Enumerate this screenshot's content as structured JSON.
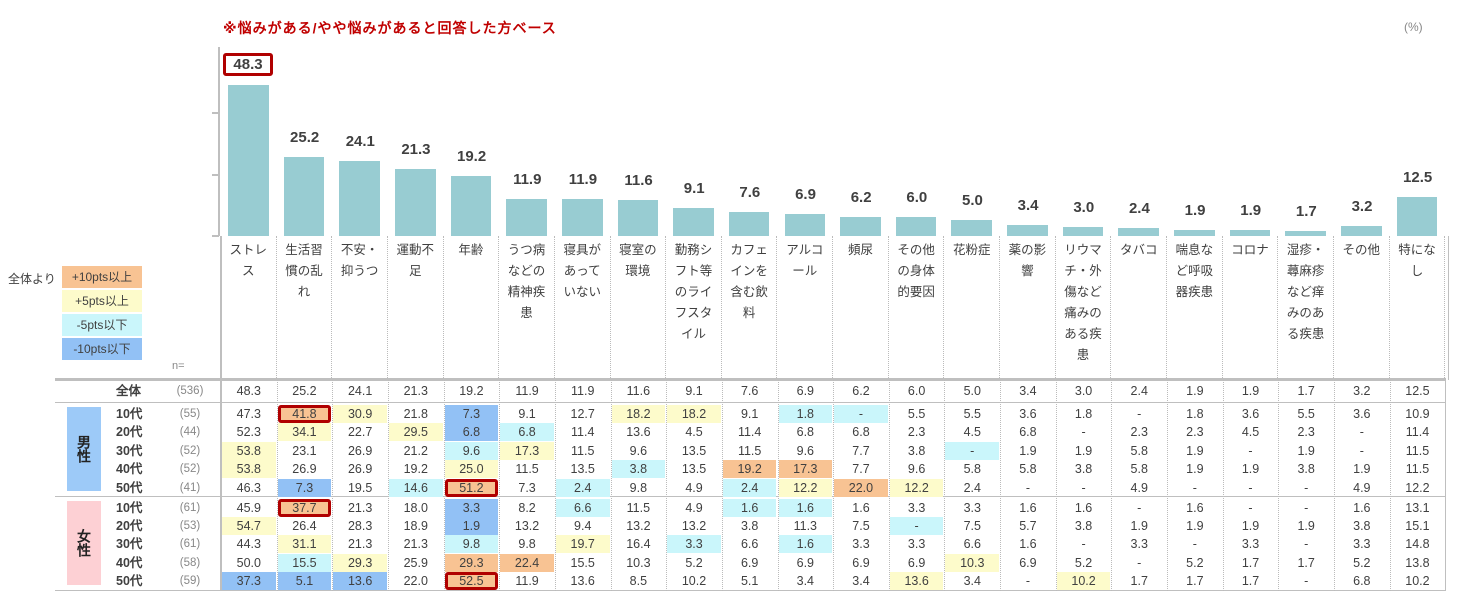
{
  "note": "※悩みがある/やや悩みがあると回答した方ベース",
  "unit": "(%)",
  "legend": {
    "title": "全体より",
    "items": [
      {
        "label": "+10pts以上",
        "cls": "o"
      },
      {
        "label": "+5pts以上",
        "cls": "y"
      },
      {
        "label": "-5pts以下",
        "cls": "c"
      },
      {
        "label": "-10pts以下",
        "cls": "b"
      }
    ]
  },
  "n_label": "n=",
  "colors": {
    "bar": "#98ccd2",
    "accent": "#c00000",
    "orange": "#f8c393",
    "yellow": "#fdfbcb",
    "cyan": "#caf6fb",
    "blue": "#92c1f5"
  },
  "chart_data": {
    "type": "bar",
    "title": "※悩みがある/やや悩みがあると回答した方ベース",
    "ylabel": "(%)",
    "ylim": [
      0,
      60
    ],
    "categories": [
      "ストレス",
      "生活習慣の乱れ",
      "不安・抑うつ",
      "運動不足",
      "年齢",
      "うつ病などの精神疾患",
      "寝具があっていない",
      "寝室の環境",
      "勤務シフト等のライフスタイル",
      "カフェインを含む飲料",
      "アルコール",
      "頻尿",
      "その他の身体的要因",
      "花粉症",
      "薬の影響",
      "リウマチ・外傷など痛みのある疾患",
      "タバコ",
      "喘息など呼吸器疾患",
      "コロナ",
      "湿疹・蕁麻疹など痒みのある疾患",
      "その他",
      "特になし"
    ],
    "values": [
      48.3,
      25.2,
      24.1,
      21.3,
      19.2,
      11.9,
      11.9,
      11.6,
      9.1,
      7.6,
      6.9,
      6.2,
      6.0,
      5.0,
      3.4,
      3.0,
      2.4,
      1.9,
      1.9,
      1.7,
      3.2,
      12.5
    ],
    "labels": [
      "48.3",
      "25.2",
      "24.1",
      "21.3",
      "19.2",
      "11.9",
      "11.9",
      "11.6",
      "9.1",
      "7.6",
      "6.9",
      "6.2",
      "6.0",
      "5.0",
      "3.4",
      "3.0",
      "2.4",
      "1.9",
      "1.9",
      "1.7",
      "3.2",
      "12.5"
    ],
    "highlighted_index": 0
  },
  "table": {
    "total": {
      "label": "全体",
      "n": "(536)",
      "values": [
        "48.3",
        "25.2",
        "24.1",
        "21.3",
        "19.2",
        "11.9",
        "11.9",
        "11.6",
        "9.1",
        "7.6",
        "6.9",
        "6.2",
        "6.0",
        "5.0",
        "3.4",
        "3.0",
        "2.4",
        "1.9",
        "1.9",
        "1.7",
        "3.2",
        "12.5"
      ],
      "hl": {}
    },
    "groups": [
      {
        "label": "男性",
        "rows": [
          {
            "label": "10代",
            "n": "(55)",
            "values": [
              "47.3",
              "41.8",
              "30.9",
              "21.8",
              "7.3",
              "9.1",
              "12.7",
              "18.2",
              "18.2",
              "9.1",
              "1.8",
              "-",
              "5.5",
              "5.5",
              "3.6",
              "1.8",
              "-",
              "1.8",
              "3.6",
              "5.5",
              "3.6",
              "10.9"
            ],
            "hl": {
              "1": "ob",
              "2": "y",
              "4": "b",
              "7": "y",
              "8": "y",
              "10": "c",
              "11": "c"
            }
          },
          {
            "label": "20代",
            "n": "(44)",
            "values": [
              "52.3",
              "34.1",
              "22.7",
              "29.5",
              "6.8",
              "6.8",
              "11.4",
              "13.6",
              "4.5",
              "11.4",
              "6.8",
              "6.8",
              "2.3",
              "4.5",
              "6.8",
              "-",
              "2.3",
              "2.3",
              "4.5",
              "2.3",
              "-",
              "11.4"
            ],
            "hl": {
              "1": "y",
              "3": "y",
              "4": "b",
              "5": "c"
            }
          },
          {
            "label": "30代",
            "n": "(52)",
            "values": [
              "53.8",
              "23.1",
              "26.9",
              "21.2",
              "9.6",
              "17.3",
              "11.5",
              "9.6",
              "13.5",
              "11.5",
              "9.6",
              "7.7",
              "3.8",
              "-",
              "1.9",
              "1.9",
              "5.8",
              "1.9",
              "-",
              "1.9",
              "-",
              "11.5"
            ],
            "hl": {
              "0": "y",
              "4": "c",
              "5": "y",
              "13": "c"
            }
          },
          {
            "label": "40代",
            "n": "(52)",
            "values": [
              "53.8",
              "26.9",
              "26.9",
              "19.2",
              "25.0",
              "11.5",
              "13.5",
              "3.8",
              "13.5",
              "19.2",
              "17.3",
              "7.7",
              "9.6",
              "5.8",
              "5.8",
              "3.8",
              "5.8",
              "1.9",
              "1.9",
              "3.8",
              "1.9",
              "11.5"
            ],
            "hl": {
              "0": "y",
              "4": "y",
              "7": "c",
              "9": "o",
              "10": "o"
            }
          },
          {
            "label": "50代",
            "n": "(41)",
            "values": [
              "46.3",
              "7.3",
              "19.5",
              "14.6",
              "51.2",
              "7.3",
              "2.4",
              "9.8",
              "4.9",
              "2.4",
              "12.2",
              "22.0",
              "12.2",
              "2.4",
              "-",
              "-",
              "4.9",
              "-",
              "-",
              "-",
              "4.9",
              "12.2"
            ],
            "hl": {
              "1": "b",
              "3": "c",
              "4": "ob",
              "6": "c",
              "9": "c",
              "10": "y",
              "11": "o",
              "12": "y"
            }
          }
        ]
      },
      {
        "label": "女性",
        "rows": [
          {
            "label": "10代",
            "n": "(61)",
            "values": [
              "45.9",
              "37.7",
              "21.3",
              "18.0",
              "3.3",
              "8.2",
              "6.6",
              "11.5",
              "4.9",
              "1.6",
              "1.6",
              "1.6",
              "3.3",
              "3.3",
              "1.6",
              "1.6",
              "-",
              "1.6",
              "-",
              "-",
              "1.6",
              "13.1"
            ],
            "hl": {
              "1": "ob",
              "4": "b",
              "6": "c",
              "9": "c",
              "10": "c"
            }
          },
          {
            "label": "20代",
            "n": "(53)",
            "values": [
              "54.7",
              "26.4",
              "28.3",
              "18.9",
              "1.9",
              "13.2",
              "9.4",
              "13.2",
              "13.2",
              "3.8",
              "11.3",
              "7.5",
              "-",
              "7.5",
              "5.7",
              "3.8",
              "1.9",
              "1.9",
              "1.9",
              "1.9",
              "3.8",
              "15.1"
            ],
            "hl": {
              "0": "y",
              "4": "b",
              "12": "c"
            }
          },
          {
            "label": "30代",
            "n": "(61)",
            "values": [
              "44.3",
              "31.1",
              "21.3",
              "21.3",
              "9.8",
              "9.8",
              "19.7",
              "16.4",
              "3.3",
              "6.6",
              "1.6",
              "3.3",
              "3.3",
              "6.6",
              "1.6",
              "-",
              "3.3",
              "-",
              "3.3",
              "-",
              "3.3",
              "14.8"
            ],
            "hl": {
              "1": "y",
              "4": "c",
              "6": "y",
              "8": "c",
              "10": "c"
            }
          },
          {
            "label": "40代",
            "n": "(58)",
            "values": [
              "50.0",
              "15.5",
              "29.3",
              "25.9",
              "29.3",
              "22.4",
              "15.5",
              "10.3",
              "5.2",
              "6.9",
              "6.9",
              "6.9",
              "6.9",
              "10.3",
              "6.9",
              "5.2",
              "-",
              "5.2",
              "1.7",
              "1.7",
              "5.2",
              "13.8"
            ],
            "hl": {
              "1": "c",
              "2": "y",
              "4": "o",
              "5": "o",
              "13": "y"
            }
          },
          {
            "label": "50代",
            "n": "(59)",
            "values": [
              "37.3",
              "5.1",
              "13.6",
              "22.0",
              "52.5",
              "11.9",
              "13.6",
              "8.5",
              "10.2",
              "5.1",
              "3.4",
              "3.4",
              "13.6",
              "3.4",
              "-",
              "10.2",
              "1.7",
              "1.7",
              "1.7",
              "-",
              "6.8",
              "10.2"
            ],
            "hl": {
              "0": "b",
              "1": "b",
              "2": "b",
              "4": "ob",
              "12": "y",
              "15": "y"
            }
          }
        ]
      }
    ]
  }
}
